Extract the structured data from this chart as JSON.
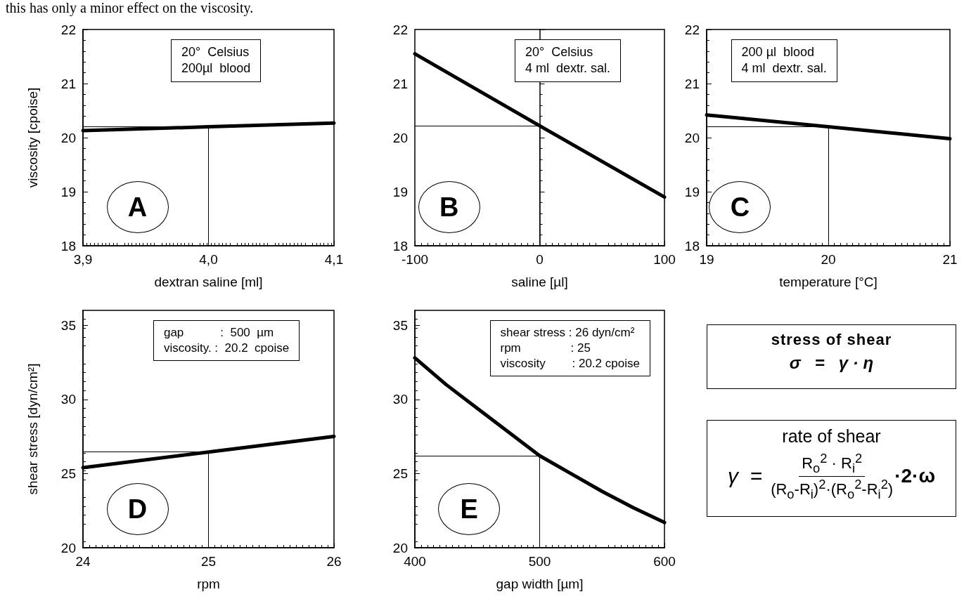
{
  "chart_data": [
    {
      "type": "other",
      "annotations": [
        "this has only a minor effect on the viscosity."
      ]
    },
    {
      "type": "line",
      "xlabel": "dextran saline [ml]",
      "ylabel": "viscosity [cpoise]",
      "x": [
        3.9,
        4.0,
        4.1
      ],
      "series": [
        {
          "color": "#000000",
          "values": [
            20.13,
            20.2,
            20.27
          ]
        }
      ],
      "xlim": [
        3.9,
        4.1
      ],
      "xticks": [
        {
          "value": 3.9,
          "label": "3,9"
        },
        {
          "value": 4.0,
          "label": "4,0"
        },
        {
          "value": 4.1,
          "label": "4,1"
        }
      ],
      "ylim": [
        18,
        22
      ],
      "yticks": [
        18,
        19,
        20,
        21,
        22
      ],
      "ref_lines": [
        {
          "axis": "y",
          "value": 20.2
        },
        {
          "axis": "x",
          "value": 4.0
        }
      ],
      "annotations": [
        "20°  Celsius\n200µl  blood",
        "A"
      ]
    },
    {
      "type": "line",
      "xlabel": "saline [µl]",
      "x": [
        -100,
        0,
        100
      ],
      "series": [
        {
          "color": "#000000",
          "values": [
            21.55,
            20.22,
            18.9
          ]
        }
      ],
      "xlim": [
        -100,
        100
      ],
      "xticks": [
        -100,
        0,
        100
      ],
      "ylim": [
        18,
        22
      ],
      "yticks": [
        18,
        19,
        20,
        21,
        22
      ],
      "ref_lines": [
        {
          "axis": "y",
          "value": 20.22
        },
        {
          "axis": "x",
          "value": 0
        }
      ],
      "annotations": [
        "20°  Celsius\n4 ml  dextr. sal.",
        "B"
      ]
    },
    {
      "type": "line",
      "xlabel": "temperature [°C]",
      "x": [
        19,
        20,
        21
      ],
      "series": [
        {
          "color": "#000000",
          "values": [
            20.42,
            20.2,
            19.98
          ]
        }
      ],
      "xlim": [
        19,
        21
      ],
      "xticks": [
        19,
        20,
        21
      ],
      "ylim": [
        18,
        22
      ],
      "yticks": [
        18,
        19,
        20,
        21,
        22
      ],
      "ref_lines": [
        {
          "axis": "y",
          "value": 20.2
        },
        {
          "axis": "x",
          "value": 20
        }
      ],
      "annotations": [
        "200 µl  blood\n4 ml  dextr. sal.",
        "C"
      ]
    },
    {
      "type": "line",
      "xlabel": "rpm",
      "ylabel": "shear stress [dyn/cm²]",
      "x": [
        24,
        25,
        26
      ],
      "series": [
        {
          "color": "#000000",
          "values": [
            25.4,
            26.45,
            27.5
          ]
        }
      ],
      "xlim": [
        24,
        26
      ],
      "xticks": [
        24,
        25,
        26
      ],
      "ylim": [
        20,
        36
      ],
      "yticks": [
        20,
        25,
        30,
        35
      ],
      "ref_lines": [
        {
          "axis": "y",
          "value": 26.45
        },
        {
          "axis": "x",
          "value": 25
        }
      ],
      "annotations": [
        "gap           :  500  µm\nviscosity. :  20.2  cpoise",
        "D"
      ]
    },
    {
      "type": "line",
      "xlabel": "gap width [µm]",
      "x": [
        400,
        425,
        450,
        475,
        500,
        525,
        550,
        575,
        600
      ],
      "series": [
        {
          "color": "#000000",
          "values": [
            32.8,
            31.0,
            29.4,
            27.8,
            26.2,
            25.0,
            23.8,
            22.7,
            21.7
          ]
        }
      ],
      "xlim": [
        400,
        600
      ],
      "xticks": [
        400,
        500,
        600
      ],
      "ylim": [
        20,
        36
      ],
      "yticks": [
        20,
        25,
        30,
        35
      ],
      "ref_lines": [
        {
          "axis": "y",
          "value": 26.2
        },
        {
          "axis": "x",
          "value": 500
        }
      ],
      "annotations": [
        "shear stress : 26 dyn/cm²\nrpm               : 25\nviscosity        : 20.2 cpoise",
        "E"
      ]
    },
    {
      "type": "other",
      "title": "stress of shear",
      "annotations": [
        "σ   =   γ · η"
      ]
    },
    {
      "type": "other",
      "title": "rate of shear",
      "annotations": [
        "γ  =",
        "R$_{o}$$^{2}$ · R$_{i}$$^{2}$",
        "(R$_{o}$-R$_{i}$)$^{2}$·(R$_{o}$$^{2}$-R$_{i}$$^{2}$)",
        "·2·ω"
      ]
    }
  ]
}
